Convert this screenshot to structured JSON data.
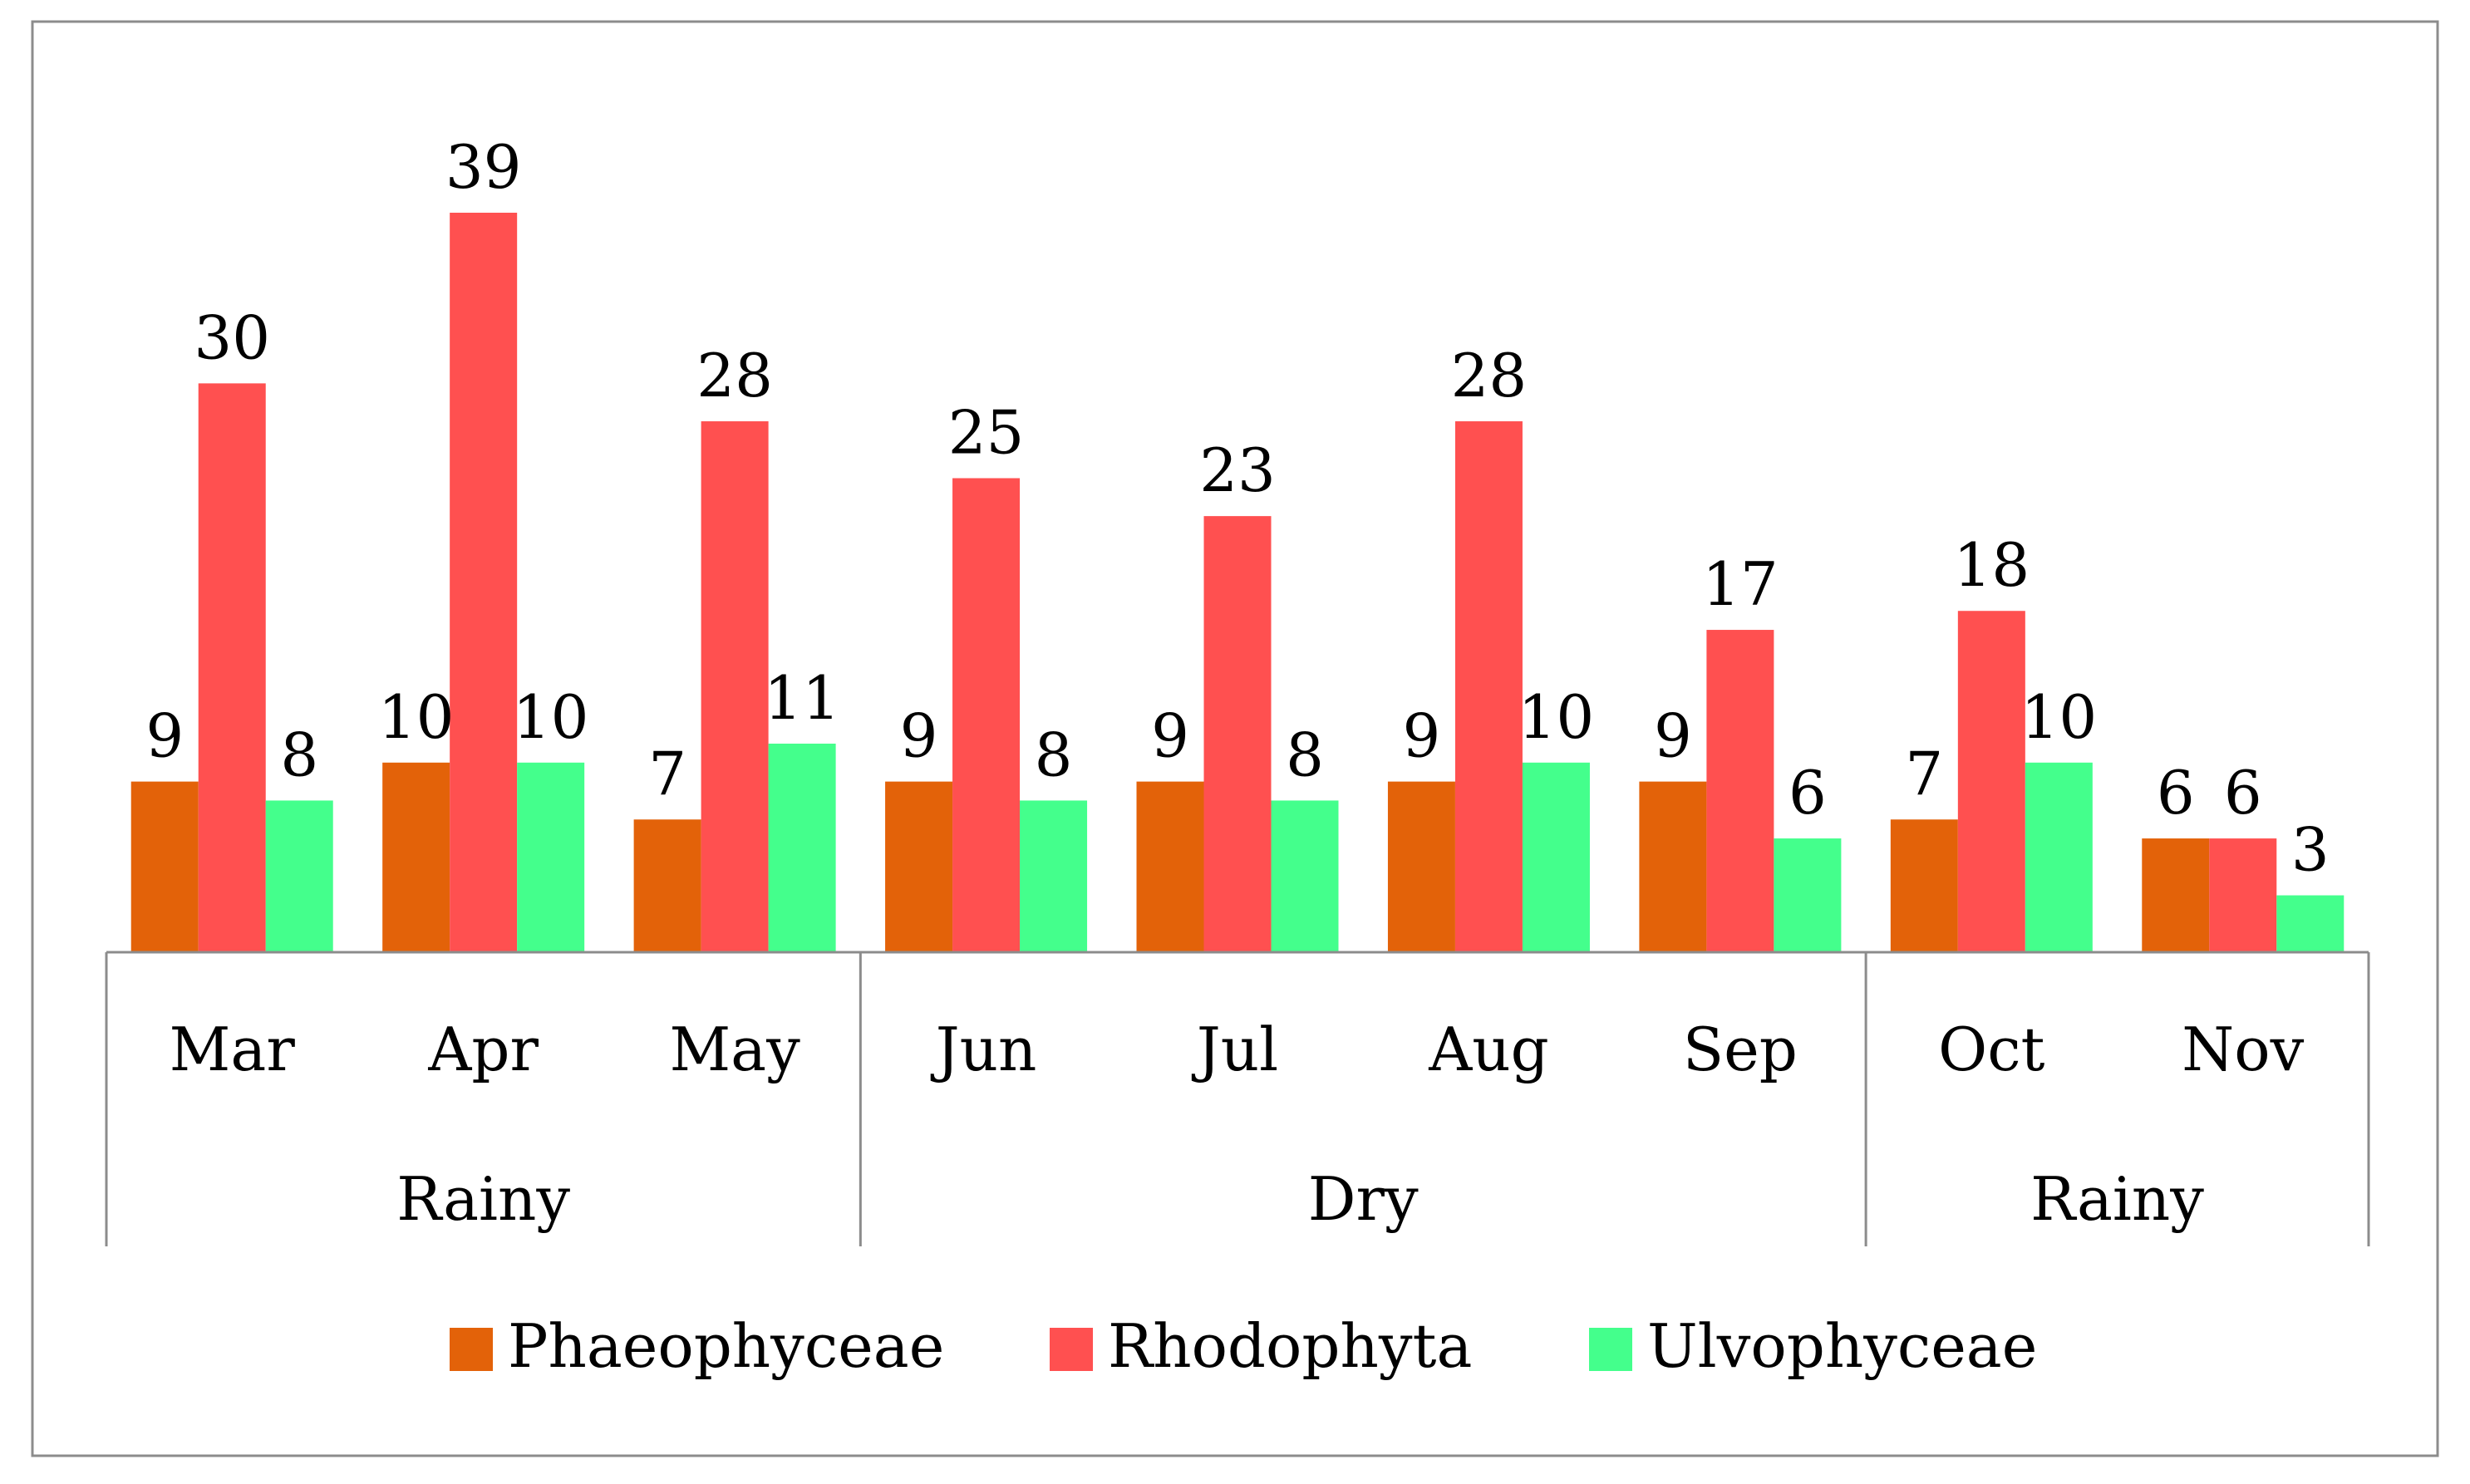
{
  "chart_data": {
    "type": "bar",
    "title": "",
    "xlabel": "",
    "ylabel": "",
    "ylim": [
      0,
      39
    ],
    "grid": false,
    "legend_position": "bottom",
    "categories": [
      "Mar",
      "Apr",
      "May",
      "Jun",
      "Jul",
      "Aug",
      "Sep",
      "Oct",
      "Nov"
    ],
    "groups": [
      {
        "label": "Rainy",
        "start": 0,
        "end": 2
      },
      {
        "label": "Dry",
        "start": 3,
        "end": 6
      },
      {
        "label": "Rainy",
        "start": 7,
        "end": 8
      }
    ],
    "series": [
      {
        "name": "Phaeophyceae",
        "color": "#E36209",
        "values": [
          9,
          10,
          7,
          9,
          9,
          9,
          9,
          7,
          6
        ]
      },
      {
        "name": "Rhodophyta",
        "color": "#FF5050",
        "values": [
          30,
          39,
          28,
          25,
          23,
          28,
          17,
          18,
          6
        ]
      },
      {
        "name": "Ulvophyceae",
        "color": "#44FF8C",
        "values": [
          8,
          10,
          11,
          8,
          8,
          10,
          6,
          10,
          3
        ]
      }
    ],
    "data_labels": true
  }
}
